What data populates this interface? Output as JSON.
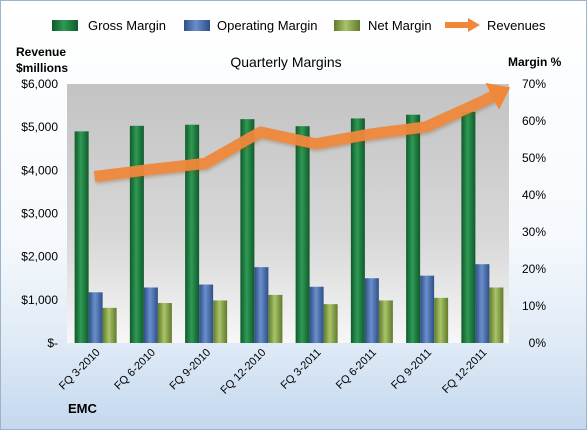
{
  "chart_data": {
    "type": "bar",
    "title": "Quarterly Margins",
    "left_axis_title_line1": "Revenue",
    "left_axis_title_line2": "$millions",
    "right_axis_title": "Margin %",
    "footer_label": "EMC",
    "categories": [
      "FQ 3-2010",
      "FQ 6-2010",
      "FQ 9-2010",
      "FQ 12-2010",
      "FQ 3-2011",
      "FQ 6-2011",
      "FQ 9-2011",
      "FQ 12-2011"
    ],
    "left_axis": {
      "ticks": [
        "$-",
        "$1,000",
        "$2,000",
        "$3,000",
        "$4,000",
        "$5,000",
        "$6,000"
      ],
      "ylim": [
        0,
        6000
      ]
    },
    "right_axis": {
      "ticks": [
        "0%",
        "10%",
        "20%",
        "30%",
        "40%",
        "50%",
        "60%",
        "70%"
      ],
      "ylim": [
        0,
        70
      ]
    },
    "series": [
      {
        "name": "Gross Margin",
        "axis": "right",
        "type": "bar",
        "color": "#1e7a3f",
        "values": [
          57.2,
          58.7,
          59.0,
          60.5,
          58.6,
          60.7,
          61.7,
          62.5
        ]
      },
      {
        "name": "Operating Margin",
        "axis": "right",
        "type": "bar",
        "color": "#4a6fae",
        "values": [
          13.7,
          15.0,
          15.8,
          20.5,
          15.2,
          17.5,
          18.2,
          21.3
        ]
      },
      {
        "name": "Net Margin",
        "axis": "right",
        "type": "bar",
        "color": "#8aa64a",
        "values": [
          9.5,
          10.8,
          11.5,
          13.0,
          10.5,
          11.5,
          12.2,
          15.0
        ]
      },
      {
        "name": "Revenues",
        "axis": "left",
        "type": "line",
        "color": "#f0883a",
        "values": [
          3857,
          4020,
          4160,
          4888,
          4614,
          4845,
          5009,
          5587
        ]
      }
    ],
    "legend_position": "top",
    "grid": false
  }
}
